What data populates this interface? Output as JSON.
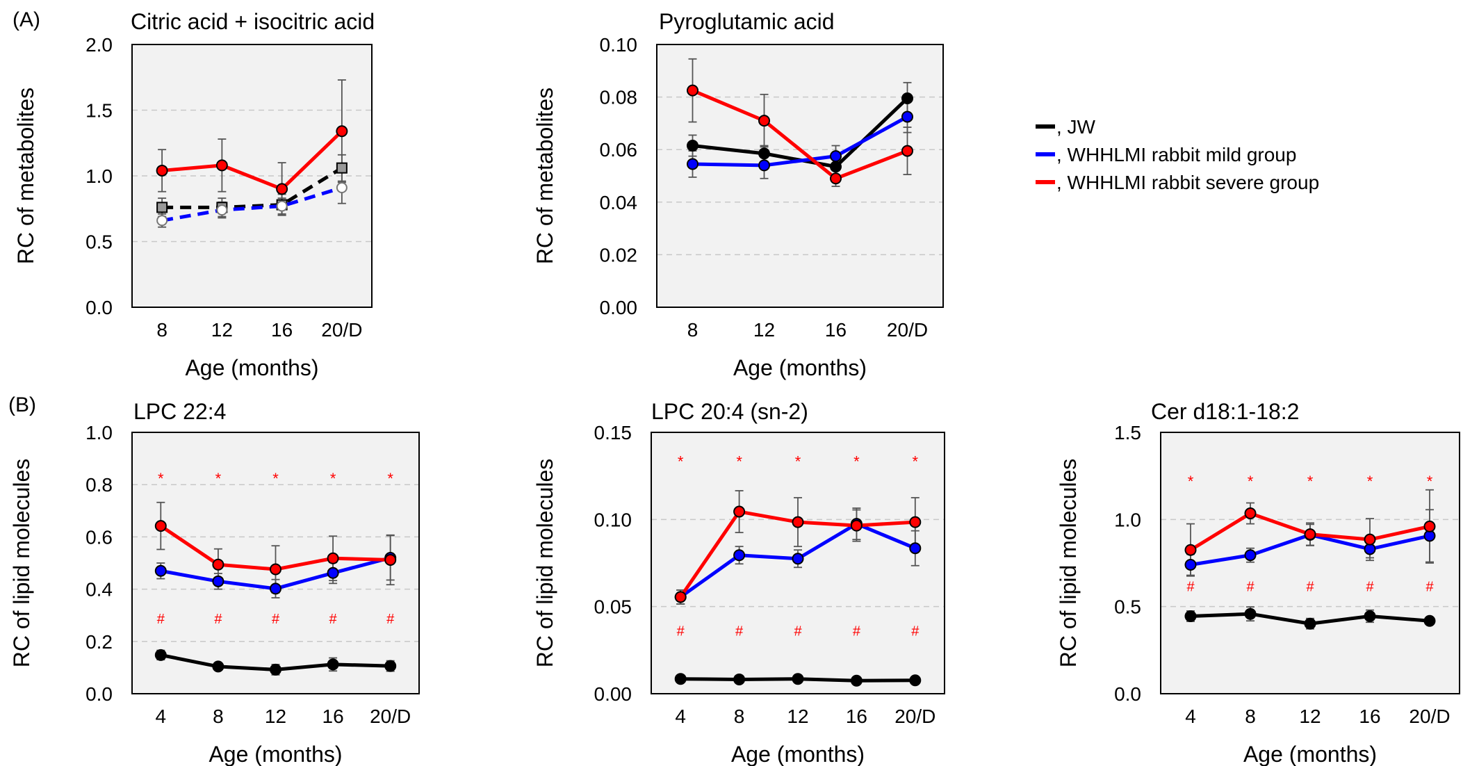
{
  "panel_labels": [
    "(A)",
    "(B)"
  ],
  "legend": [
    {
      "label": ", JW",
      "color": "#000000"
    },
    {
      "label": ", WHHLMI rabbit mild group",
      "color": "#0000ff"
    },
    {
      "label": ", WHHLMI rabbit severe group",
      "color": "#ff0000"
    }
  ],
  "chart_data": [
    {
      "type": "line",
      "title": "Citric acid + isocitric acid",
      "xlabel": "Age (months)",
      "ylabel": "RC of metabolites",
      "categories": [
        "8",
        "12",
        "16",
        "20/D"
      ],
      "ylim": [
        0,
        2.0
      ],
      "yticks": [
        "0.0",
        "0.5",
        "1.0",
        "1.5",
        "2.0"
      ],
      "grid": true,
      "series": [
        {
          "name": "JW",
          "color": "#000000",
          "style": "dashed",
          "marker": "square",
          "values": [
            0.76,
            0.76,
            0.78,
            1.06
          ],
          "err": [
            0.07,
            0.07,
            0.08,
            0.1
          ]
        },
        {
          "name": "WHHLMI rabbit mild group",
          "color": "#0000ff",
          "style": "dashed",
          "marker": "open-circle",
          "values": [
            0.66,
            0.74,
            0.77,
            0.91
          ],
          "err": [
            0.05,
            0.06,
            0.06,
            0.12
          ]
        },
        {
          "name": "WHHLMI rabbit severe group",
          "color": "#ff0000",
          "style": "solid",
          "marker": "circle",
          "values": [
            1.04,
            1.08,
            0.9,
            1.34
          ],
          "err": [
            0.16,
            0.2,
            0.2,
            0.39
          ]
        }
      ],
      "annotations_top": [],
      "annotations_bottom": []
    },
    {
      "type": "line",
      "title": "Pyroglutamic acid",
      "xlabel": "Age (months)",
      "ylabel": "RC of metabolites",
      "categories": [
        "8",
        "12",
        "16",
        "20/D"
      ],
      "ylim": [
        0,
        0.1
      ],
      "yticks": [
        "0.00",
        "0.02",
        "0.04",
        "0.06",
        "0.08",
        "0.10"
      ],
      "grid": true,
      "series": [
        {
          "name": "JW",
          "color": "#000000",
          "style": "solid",
          "marker": "circle",
          "values": [
            0.0615,
            0.0585,
            0.0535,
            0.0795
          ],
          "err": [
            0.004,
            0.003,
            0.003,
            0.006
          ]
        },
        {
          "name": "WHHLMI rabbit mild group",
          "color": "#0000ff",
          "style": "solid",
          "marker": "circle",
          "values": [
            0.0545,
            0.054,
            0.0575,
            0.0725
          ],
          "err": [
            0.005,
            0.005,
            0.004,
            0.006
          ]
        },
        {
          "name": "WHHLMI rabbit severe group",
          "color": "#ff0000",
          "style": "solid",
          "marker": "circle",
          "values": [
            0.0825,
            0.071,
            0.049,
            0.0595
          ],
          "err": [
            0.012,
            0.01,
            0.003,
            0.009
          ]
        }
      ],
      "annotations_top": [],
      "annotations_bottom": []
    },
    {
      "type": "line",
      "title": "LPC 22:4",
      "xlabel": "Age (months)",
      "ylabel": "RC of lipid molecules",
      "categories": [
        "4",
        "8",
        "12",
        "16",
        "20/D"
      ],
      "ylim": [
        0,
        1.0
      ],
      "yticks": [
        "0.0",
        "0.2",
        "0.4",
        "0.6",
        "0.8",
        "1.0"
      ],
      "grid": true,
      "series": [
        {
          "name": "JW",
          "color": "#000000",
          "style": "solid",
          "marker": "circle",
          "values": [
            0.148,
            0.104,
            0.092,
            0.112,
            0.106
          ],
          "err": [
            0.018,
            0.012,
            0.02,
            0.025,
            0.02
          ]
        },
        {
          "name": "WHHLMI rabbit mild group",
          "color": "#0000ff",
          "style": "solid",
          "marker": "circle",
          "values": [
            0.47,
            0.43,
            0.402,
            0.462,
            0.52
          ],
          "err": [
            0.03,
            0.03,
            0.035,
            0.04,
            0.085
          ]
        },
        {
          "name": "WHHLMI rabbit severe group",
          "color": "#ff0000",
          "style": "solid",
          "marker": "circle",
          "values": [
            0.642,
            0.494,
            0.476,
            0.518,
            0.512
          ],
          "err": [
            0.09,
            0.06,
            0.09,
            0.085,
            0.095
          ]
        }
      ],
      "annotations_top": [
        "*",
        "*",
        "*",
        "*",
        "*"
      ],
      "annotations_top_y": 0.825,
      "annotations_bottom": [
        "#",
        "#",
        "#",
        "#",
        "#"
      ],
      "annotations_bottom_y": 0.29
    },
    {
      "type": "line",
      "title": "LPC 20:4 (sn-2)",
      "xlabel": "Age (months)",
      "ylabel": "RC of lipid molecules",
      "categories": [
        "4",
        "8",
        "12",
        "16",
        "20/D"
      ],
      "ylim": [
        0,
        0.15
      ],
      "yticks": [
        "0.00",
        "0.05",
        "0.10",
        "0.15"
      ],
      "grid": true,
      "series": [
        {
          "name": "JW",
          "color": "#000000",
          "style": "solid",
          "marker": "circle",
          "values": [
            0.0085,
            0.0082,
            0.0085,
            0.0075,
            0.0077
          ],
          "err": [
            0.002,
            0.001,
            0.001,
            0.001,
            0.001
          ]
        },
        {
          "name": "WHHLMI rabbit mild group",
          "color": "#0000ff",
          "style": "solid",
          "marker": "circle",
          "values": [
            0.0555,
            0.0795,
            0.0775,
            0.0975,
            0.0835
          ],
          "err": [
            0.004,
            0.005,
            0.005,
            0.009,
            0.01
          ]
        },
        {
          "name": "WHHLMI rabbit severe group",
          "color": "#ff0000",
          "style": "solid",
          "marker": "circle",
          "values": [
            0.0555,
            0.1045,
            0.0985,
            0.0965,
            0.0985
          ],
          "err": [
            0.004,
            0.012,
            0.014,
            0.009,
            0.014
          ]
        }
      ],
      "annotations_top": [
        "*",
        "*",
        "*",
        "*",
        "*"
      ],
      "annotations_top_y": 0.1335,
      "annotations_bottom": [
        "#",
        "#",
        "#",
        "#",
        "#"
      ],
      "annotations_bottom_y": 0.0365
    },
    {
      "type": "line",
      "title": "Cer d18:1-18:2",
      "xlabel": "Age (months)",
      "ylabel": "RC of lipid molecules",
      "categories": [
        "4",
        "8",
        "12",
        "16",
        "20/D"
      ],
      "ylim": [
        0,
        1.5
      ],
      "yticks": [
        "0.0",
        "0.5",
        "1.0",
        "1.5"
      ],
      "grid": true,
      "series": [
        {
          "name": "JW",
          "color": "#000000",
          "style": "solid",
          "marker": "circle",
          "values": [
            0.445,
            0.458,
            0.402,
            0.445,
            0.418
          ],
          "err": [
            0.03,
            0.04,
            0.03,
            0.035,
            0.015
          ]
        },
        {
          "name": "WHHLMI rabbit mild group",
          "color": "#0000ff",
          "style": "solid",
          "marker": "circle",
          "values": [
            0.74,
            0.795,
            0.912,
            0.83,
            0.906
          ],
          "err": [
            0.06,
            0.04,
            0.06,
            0.05,
            0.15
          ]
        },
        {
          "name": "WHHLMI rabbit severe group",
          "color": "#ff0000",
          "style": "solid",
          "marker": "circle",
          "values": [
            0.825,
            1.035,
            0.915,
            0.885,
            0.96
          ],
          "err": [
            0.15,
            0.06,
            0.065,
            0.12,
            0.21
          ]
        }
      ],
      "annotations_top": [
        "*",
        "*",
        "*",
        "*",
        "*"
      ],
      "annotations_top_y": 1.22,
      "annotations_bottom": [
        "#",
        "#",
        "#",
        "#",
        "#"
      ],
      "annotations_bottom_y": 0.62
    }
  ]
}
